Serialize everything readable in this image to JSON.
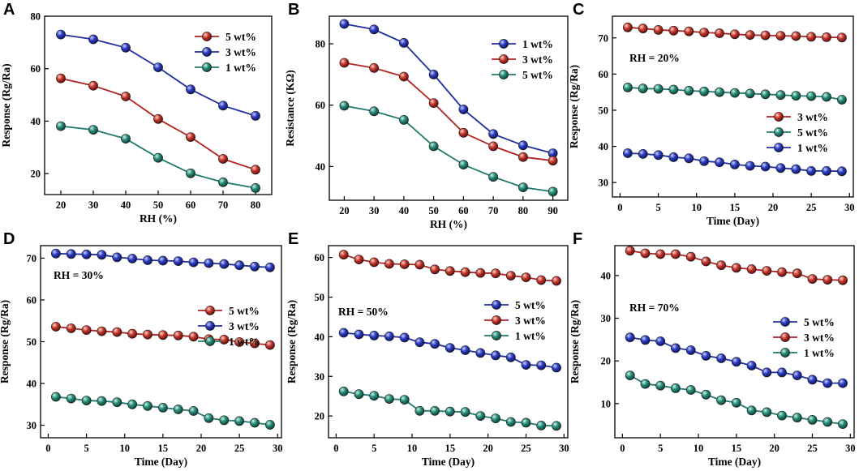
{
  "chart_data": [
    {
      "id": "A",
      "letter": "A",
      "type": "line",
      "xlabel": "RH (%)",
      "ylabel": "Response (Rg/Ra)",
      "xlim": [
        15,
        85
      ],
      "ylim": [
        12,
        80
      ],
      "xticks": [
        20,
        30,
        40,
        50,
        60,
        70,
        80
      ],
      "yticks": [
        20,
        40,
        60,
        80
      ],
      "x": [
        20,
        30,
        40,
        50,
        60,
        70,
        80
      ],
      "legend_position": "top-right",
      "annotation": "",
      "series": [
        {
          "name": "5 wt%",
          "color": "#b22222",
          "values": [
            56.3,
            53.5,
            49.4,
            40.8,
            33.9,
            25.6,
            21.5
          ]
        },
        {
          "name": "3 wt%",
          "color": "#1f2ea0",
          "values": [
            73.0,
            71.2,
            68.0,
            60.5,
            52.1,
            45.9,
            42.0
          ]
        },
        {
          "name": "1 wt%",
          "color": "#1f7a6a",
          "values": [
            38.1,
            36.7,
            33.3,
            26.0,
            20.1,
            16.7,
            14.5
          ]
        }
      ]
    },
    {
      "id": "B",
      "letter": "B",
      "type": "line",
      "xlabel": "RH (%)",
      "ylabel": "Resistance (KΩ)",
      "xlim": [
        15,
        95
      ],
      "ylim": [
        29,
        89
      ],
      "xticks": [
        20,
        30,
        40,
        50,
        60,
        70,
        80,
        90
      ],
      "yticks": [
        40,
        60,
        80
      ],
      "x": [
        20,
        30,
        40,
        50,
        60,
        70,
        80,
        90
      ],
      "legend_position": "top-right",
      "annotation": "",
      "series": [
        {
          "name": "1 wt%",
          "color": "#1f2ea0",
          "values": [
            86.5,
            84.7,
            80.3,
            70.0,
            58.6,
            50.6,
            46.9,
            44.3
          ]
        },
        {
          "name": "3 wt%",
          "color": "#b22222",
          "values": [
            73.8,
            72.1,
            69.3,
            60.7,
            51.0,
            46.6,
            43.1,
            41.9
          ]
        },
        {
          "name": "5 wt%",
          "color": "#1f7a6a",
          "values": [
            59.8,
            58.0,
            55.2,
            46.6,
            40.6,
            36.6,
            33.2,
            31.8
          ]
        }
      ]
    },
    {
      "id": "C",
      "letter": "C",
      "type": "line",
      "xlabel": "Time (Day)",
      "ylabel": "Response (Rg/Ra)",
      "xlim": [
        -1,
        30.5
      ],
      "ylim": [
        26,
        76
      ],
      "xticks": [
        0,
        5,
        10,
        15,
        20,
        25,
        30
      ],
      "yticks": [
        30,
        40,
        50,
        60,
        70
      ],
      "x": [
        1,
        3,
        5,
        7,
        9,
        11,
        13,
        15,
        17,
        19,
        21,
        23,
        25,
        27,
        29
      ],
      "legend_position": "center-right",
      "annotation": "RH = 20%",
      "series": [
        {
          "name": "3 wt%",
          "color": "#b22222",
          "values": [
            72.9,
            72.6,
            72.2,
            72.0,
            71.8,
            71.5,
            71.3,
            71.0,
            70.8,
            70.7,
            70.6,
            70.5,
            70.3,
            70.2,
            70.1
          ]
        },
        {
          "name": "5 wt%",
          "color": "#1f7a6a",
          "values": [
            56.3,
            56.0,
            55.9,
            55.7,
            55.4,
            55.2,
            55.0,
            54.8,
            54.6,
            54.4,
            54.2,
            54.0,
            53.9,
            53.7,
            52.9
          ]
        },
        {
          "name": "1 wt%",
          "color": "#1f2ea0",
          "values": [
            38.1,
            37.9,
            37.6,
            37.0,
            36.7,
            35.9,
            35.6,
            35.0,
            34.6,
            34.4,
            34.0,
            33.7,
            33.2,
            33.2,
            33.1
          ]
        }
      ]
    },
    {
      "id": "D",
      "letter": "D",
      "type": "line",
      "xlabel": "Time (Day)",
      "ylabel": "Response (Rg/Ra)",
      "xlim": [
        -1,
        30.5
      ],
      "ylim": [
        27,
        73
      ],
      "xticks": [
        0,
        5,
        10,
        15,
        20,
        25,
        30
      ],
      "yticks": [
        30,
        40,
        50,
        60,
        70
      ],
      "x": [
        1,
        3,
        5,
        7,
        9,
        11,
        13,
        15,
        17,
        19,
        21,
        23,
        25,
        27,
        29
      ],
      "legend_position": "center-right",
      "annotation": "RH = 30%",
      "series": [
        {
          "name": "5 wt%",
          "color": "#b22222",
          "values": [
            53.6,
            53.2,
            52.8,
            52.5,
            52.3,
            51.9,
            51.7,
            51.6,
            51.5,
            51.2,
            50.6,
            50.5,
            49.9,
            49.6,
            49.2
          ]
        },
        {
          "name": "3 wt%",
          "color": "#1f2ea0",
          "values": [
            71.1,
            71.0,
            70.9,
            70.8,
            70.2,
            69.9,
            69.5,
            69.4,
            69.3,
            69.0,
            68.8,
            68.6,
            68.3,
            68.0,
            67.8
          ]
        },
        {
          "name": "1 wt%",
          "color": "#1f7a6a",
          "values": [
            36.8,
            36.4,
            35.9,
            35.8,
            35.5,
            35.0,
            34.6,
            34.2,
            33.8,
            33.4,
            31.7,
            31.2,
            31.0,
            30.6,
            30.1
          ]
        }
      ]
    },
    {
      "id": "E",
      "letter": "E",
      "type": "line",
      "xlabel": "Time (Day)",
      "ylabel": "Response (Rg/Ra)",
      "xlim": [
        -1,
        30.5
      ],
      "ylim": [
        14.5,
        63
      ],
      "xticks": [
        0,
        5,
        10,
        15,
        20,
        25,
        30
      ],
      "yticks": [
        20,
        30,
        40,
        50,
        60
      ],
      "x": [
        1,
        3,
        5,
        7,
        9,
        11,
        13,
        15,
        17,
        19,
        21,
        23,
        25,
        27,
        29
      ],
      "legend_position": "center-right",
      "annotation": "RH = 50%",
      "series": [
        {
          "name": "5 wt%",
          "color": "#1f2ea0",
          "values": [
            41.0,
            40.6,
            40.3,
            40.1,
            39.8,
            38.6,
            38.2,
            37.2,
            36.6,
            35.9,
            35.3,
            34.8,
            32.9,
            32.8,
            32.2
          ]
        },
        {
          "name": "3 wt%",
          "color": "#b22222",
          "values": [
            60.7,
            59.5,
            58.8,
            58.4,
            58.3,
            58.2,
            57.0,
            56.6,
            56.3,
            56.1,
            56.0,
            55.4,
            55.0,
            54.3,
            54.1
          ]
        },
        {
          "name": "1 wt%",
          "color": "#1f7a6a",
          "values": [
            26.2,
            25.5,
            25.1,
            24.3,
            24.1,
            21.3,
            21.3,
            21.1,
            21.0,
            20.0,
            19.4,
            18.5,
            18.3,
            17.6,
            17.5
          ]
        }
      ]
    },
    {
      "id": "F",
      "letter": "F",
      "type": "line",
      "xlabel": "Time (Day)",
      "ylabel": "Response (Rg/Ra)",
      "xlim": [
        -1,
        30.5
      ],
      "ylim": [
        2,
        47
      ],
      "xticks": [
        0,
        5,
        10,
        15,
        20,
        25,
        30
      ],
      "yticks": [
        10,
        20,
        30,
        40
      ],
      "x": [
        1,
        3,
        5,
        7,
        9,
        11,
        13,
        15,
        17,
        19,
        21,
        23,
        25,
        27,
        29
      ],
      "legend_position": "center-right",
      "annotation": "RH = 70%",
      "series": [
        {
          "name": "5 wt%",
          "color": "#1f2ea0",
          "values": [
            25.5,
            24.9,
            24.6,
            23.0,
            22.5,
            21.2,
            20.6,
            19.8,
            18.9,
            17.3,
            17.3,
            16.6,
            15.6,
            14.8,
            14.8
          ]
        },
        {
          "name": "3 wt%",
          "color": "#b22222",
          "values": [
            45.8,
            45.2,
            45.0,
            45.0,
            44.4,
            43.3,
            42.4,
            41.8,
            41.5,
            41.1,
            40.8,
            40.5,
            39.2,
            39.0,
            38.9
          ]
        },
        {
          "name": "1 wt%",
          "color": "#1f7a6a",
          "values": [
            16.6,
            14.6,
            14.2,
            13.6,
            13.2,
            12.1,
            10.8,
            10.2,
            8.4,
            8.0,
            7.2,
            6.7,
            6.2,
            5.7,
            5.2
          ]
        }
      ]
    }
  ]
}
